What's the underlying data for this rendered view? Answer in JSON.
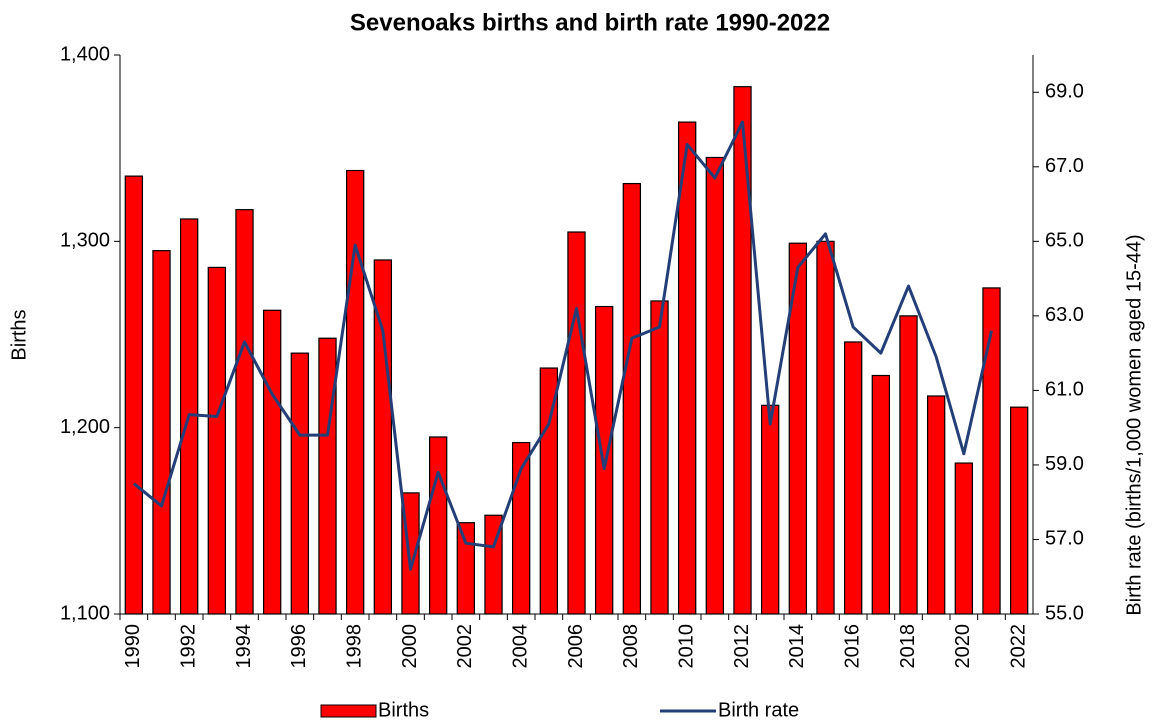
{
  "chart_data": {
    "type": "bar_line",
    "title": "Sevenoaks births and birth rate 1990-2022",
    "ylabel": "Births",
    "y2label": "Birth rate (births/1,000 women aged 15-44)",
    "categories": [
      "1990",
      null,
      "1992",
      null,
      "1994",
      null,
      "1996",
      null,
      "1998",
      null,
      "2000",
      null,
      "2002",
      null,
      "2004",
      null,
      "2006",
      null,
      "2008",
      null,
      "2010",
      null,
      "2012",
      null,
      "2014",
      null,
      "2016",
      null,
      "2018",
      null,
      "2020",
      null,
      "2022"
    ],
    "series": [
      {
        "name": "Births",
        "type": "bar",
        "color": "#ff0000",
        "axis": "y",
        "values": [
          1335,
          1295,
          1312,
          1286,
          1317,
          1263,
          1240,
          1248,
          1338,
          1290,
          1165,
          1195,
          1149,
          1153,
          1192,
          1232,
          1305,
          1265,
          1331,
          1268,
          1364,
          1345,
          1383,
          1212,
          1299,
          1300,
          1246,
          1228,
          1260,
          1217,
          1181,
          1275,
          1211
        ]
      },
      {
        "name": "Birth rate",
        "type": "line",
        "color": "#243f77",
        "axis": "y2",
        "values": [
          58.5,
          57.9,
          60.35,
          60.3,
          62.3,
          60.9,
          59.8,
          59.8,
          64.9,
          62.6,
          56.2,
          58.8,
          56.9,
          56.8,
          58.9,
          60.1,
          63.2,
          58.9,
          62.4,
          62.7,
          67.6,
          66.7,
          68.2,
          60.1,
          64.3,
          65.2,
          62.7,
          62.0,
          63.8,
          61.9,
          59.3,
          62.6,
          null
        ]
      }
    ],
    "ylim": [
      1100,
      1400
    ],
    "yticks": [
      {
        "value": 1100,
        "label": "1,100"
      },
      {
        "value": 1200,
        "label": "1,200"
      },
      {
        "value": 1300,
        "label": "1,300"
      },
      {
        "value": 1400,
        "label": "1,400"
      }
    ],
    "y2lim": [
      55,
      70
    ],
    "y2ticks": [
      {
        "value": 55,
        "label": "55.0"
      },
      {
        "value": 57,
        "label": "57.0"
      },
      {
        "value": 59,
        "label": "59.0"
      },
      {
        "value": 61,
        "label": "61.0"
      },
      {
        "value": 63,
        "label": "63.0"
      },
      {
        "value": 65,
        "label": "65.0"
      },
      {
        "value": 67,
        "label": "67.0"
      },
      {
        "value": 69,
        "label": "69.0"
      }
    ],
    "grid": false,
    "legend": "bottom"
  }
}
